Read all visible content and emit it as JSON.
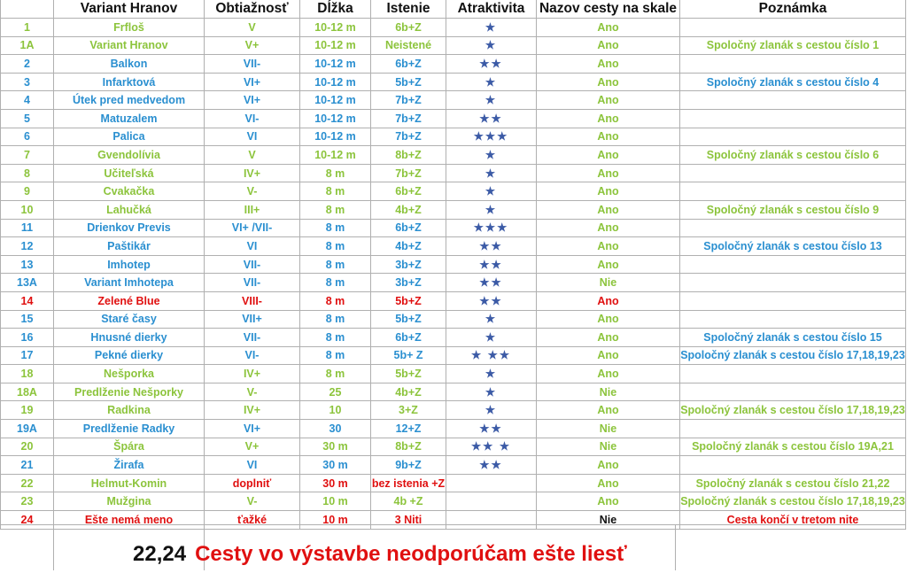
{
  "headers": {
    "num": "",
    "name": "Variant Hranov",
    "grade": "Obtiažnosť",
    "length": "Dĺžka",
    "protection": "Istenie",
    "stars": "Atraktivita",
    "sign": "Nazov cesty na skale",
    "note": "Poznámka"
  },
  "colors": {
    "blue": "#2a8fd0",
    "green": "#8cc43c",
    "red": "#e01010",
    "star": "#3b5aa6"
  },
  "rows": [
    {
      "num": "1",
      "name": "Frfloš",
      "grade": "V",
      "length": "10-12 m",
      "protection": "6b+Z",
      "stars": "★",
      "sign": "Ano",
      "note": "",
      "color": "green"
    },
    {
      "num": "1A",
      "name": "Variant Hranov",
      "grade": "V+",
      "length": "10-12 m",
      "protection": "Neistené",
      "stars": "★",
      "sign": "Ano",
      "note": "Spoločný zlanák s cestou číslo 1",
      "color": "green"
    },
    {
      "num": "2",
      "name": "Balkon",
      "grade": "VII-",
      "length": "10-12 m",
      "protection": "6b+Z",
      "stars": "★★",
      "sign": "Ano",
      "note": "",
      "color": "blue"
    },
    {
      "num": "3",
      "name": "Infarktová",
      "grade": "VI+",
      "length": "10-12 m",
      "protection": "5b+Z",
      "stars": "★",
      "sign": "Ano",
      "note": "Spoločný zlanák s cestou číslo 4",
      "color": "blue"
    },
    {
      "num": "4",
      "name": "Útek pred medvedom",
      "grade": "VI+",
      "length": "10-12 m",
      "protection": "7b+Z",
      "stars": "★",
      "sign": "Ano",
      "note": "",
      "color": "blue"
    },
    {
      "num": "5",
      "name": "Matuzalem",
      "grade": "VI-",
      "length": "10-12 m",
      "protection": "7b+Z",
      "stars": "★★",
      "sign": "Ano",
      "note": "",
      "color": "blue"
    },
    {
      "num": "6",
      "name": "Palica",
      "grade": "VI",
      "length": "10-12 m",
      "protection": "7b+Z",
      "stars": "★★★",
      "sign": "Ano",
      "note": "",
      "color": "blue"
    },
    {
      "num": "7",
      "name": "Gvendolívia",
      "grade": "V",
      "length": "10-12 m",
      "protection": "8b+Z",
      "stars": "★",
      "sign": "Ano",
      "note": "Spoločný zlanák s cestou číslo 6",
      "color": "green"
    },
    {
      "num": "8",
      "name": "Učiteľská",
      "grade": "IV+",
      "length": "8 m",
      "protection": "7b+Z",
      "stars": "★",
      "sign": "Ano",
      "note": "",
      "color": "green"
    },
    {
      "num": "9",
      "name": "Cvakačka",
      "grade": "V-",
      "length": "8 m",
      "protection": "6b+Z",
      "stars": "★",
      "sign": "Ano",
      "note": "",
      "color": "green"
    },
    {
      "num": "10",
      "name": "Lahučká",
      "grade": "III+",
      "length": "8 m",
      "protection": "4b+Z",
      "stars": "★",
      "sign": "Ano",
      "note": "Spoločný zlanák s cestou číslo 9",
      "color": "green"
    },
    {
      "num": "11",
      "name": "Drienkov   Previs",
      "grade": "VI+ /VII-",
      "length": "8 m",
      "protection": "6b+Z",
      "stars": "★★★",
      "sign": "Ano",
      "note": "",
      "color": "blue"
    },
    {
      "num": "12",
      "name": "Paštikár",
      "grade": "VI",
      "length": "8 m",
      "protection": "4b+Z",
      "stars": "★★",
      "sign": "Ano",
      "note": "Spoločný zlanák s cestou číslo 13",
      "color": "blue"
    },
    {
      "num": "13",
      "name": "Imhotep",
      "grade": "VII-",
      "length": "8 m",
      "protection": "3b+Z",
      "stars": "★★",
      "sign": "Ano",
      "note": "",
      "color": "blue"
    },
    {
      "num": "13A",
      "name": " Variant Imhotepa",
      "grade": "VII-",
      "length": "8 m",
      "protection": "3b+Z",
      "stars": "★★",
      "sign": "Nie",
      "note": "",
      "color": "blue"
    },
    {
      "num": "14",
      "name": "Zelené Blue",
      "grade": "VIII-",
      "length": "8 m",
      "protection": "5b+Z",
      "stars": "★★",
      "sign": "Ano",
      "note": "",
      "color": "red"
    },
    {
      "num": "15",
      "name": "Staré časy",
      "grade": "VII+",
      "length": "8 m",
      "protection": "5b+Z",
      "stars": "★",
      "sign": "Ano",
      "note": "",
      "color": "blue"
    },
    {
      "num": "16",
      "name": "Hnusné dierky",
      "grade": "VII-",
      "length": "8 m",
      "protection": "6b+Z",
      "stars": "★",
      "sign": "Ano",
      "note": "Spoločný zlanák s cestou číslo 15",
      "color": "blue"
    },
    {
      "num": "17",
      "name": "Pekné dierky",
      "grade": "VI-",
      "length": "8 m",
      "protection": "5b+ Z",
      "stars": "★ ★★",
      "sign": "Ano",
      "note": "Spoločný zlanák s cestou číslo 17,18,19,23",
      "color": "blue"
    },
    {
      "num": "18",
      "name": "Nešporka",
      "grade": "IV+",
      "length": "8 m",
      "protection": "5b+Z",
      "stars": "★",
      "sign": "Ano",
      "note": "",
      "color": "green"
    },
    {
      "num": "18A",
      "name": "Predlženie  Nešporky",
      "grade": "V-",
      "length": "25",
      "protection": "4b+Z",
      "stars": "★",
      "sign": "Nie",
      "note": "",
      "color": "green"
    },
    {
      "num": "19",
      "name": "Radkina",
      "grade": "IV+",
      "length": "10",
      "protection": "3+Z",
      "stars": "★",
      "sign": "Ano",
      "note": "Spoločný zlanák s cestou číslo 17,18,19,23",
      "color": "green"
    },
    {
      "num": "19A",
      "name": "Predlženie Radky",
      "grade": "VI+",
      "length": "30",
      "protection": "12+Z",
      "stars": "★★",
      "sign": "Nie",
      "note": "",
      "color": "blue"
    },
    {
      "num": "20",
      "name": "Špára",
      "grade": "V+",
      "length": "30 m",
      "protection": "8b+Z",
      "stars": "★★ ★",
      "sign": "Nie",
      "note": "Spoločný zlanák s cestou číslo 19A,21",
      "color": "green"
    },
    {
      "num": "21",
      "name": "Žirafa",
      "grade": "VI",
      "length": "30 m",
      "protection": "9b+Z",
      "stars": "★★",
      "sign": "Ano",
      "note": "",
      "color": "blue"
    },
    {
      "num": "22",
      "name": "Helmut-Komin",
      "grade": "doplniť",
      "length": "30 m",
      "protection": "bez istenia +Z",
      "stars": "",
      "sign": "Ano",
      "note": "Spoločný zlanák s cestou číslo 21,22",
      "color": "green",
      "gradeColor": "red",
      "lengthColor": "red",
      "protColor": "red"
    },
    {
      "num": "23",
      "name": "Mužgina",
      "grade": "V-",
      "length": "10 m",
      "protection": "4b +Z",
      "stars": "",
      "sign": "Ano",
      "note": "Spoločný zlanák s cestou číslo 17,18,19,23",
      "color": "green"
    },
    {
      "num": "24",
      "name": "Ešte nemá meno",
      "grade": "ťažké",
      "length": "10 m",
      "protection": "3 Niti",
      "stars": "",
      "sign": "Nie",
      "note": "Cesta končí v tretom nite",
      "color": "red",
      "signColor": "black"
    }
  ],
  "footer": {
    "numbers": "22,24",
    "text": "Cesty vo výstavbe neodporúčam ešte liesť"
  }
}
